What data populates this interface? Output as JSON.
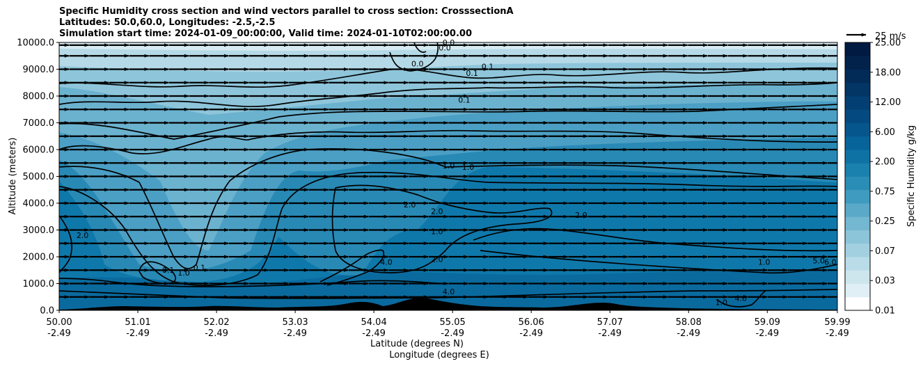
{
  "chart_data": {
    "type": "contourf",
    "title_lines": [
      "Specific Humidity cross section and wind vectors parallel to cross section: CrosssectionA",
      "Latitudes: 50.0,60.0, Longitudes: -2.5,-2.5",
      "Simulation start time: 2024-01-09_00:00:00, Valid time: 2024-01-10T02:00:00.00"
    ],
    "ylabel": "Altitude (meters)",
    "xlabel_lat": "Latitude (degrees N)",
    "xlabel_lon": "Longitude (degrees E)",
    "xlim": [
      50.0,
      59.99
    ],
    "ylim": [
      0,
      10000
    ],
    "grid": "horizontal",
    "x_ticks": [
      {
        "lat": "50.00",
        "lon": "-2.49",
        "v": 50.0
      },
      {
        "lat": "51.01",
        "lon": "-2.49",
        "v": 51.01
      },
      {
        "lat": "52.02",
        "lon": "-2.49",
        "v": 52.02
      },
      {
        "lat": "53.03",
        "lon": "-2.49",
        "v": 53.03
      },
      {
        "lat": "54.04",
        "lon": "-2.49",
        "v": 54.04
      },
      {
        "lat": "55.05",
        "lon": "-2.49",
        "v": 55.05
      },
      {
        "lat": "56.06",
        "lon": "-2.49",
        "v": 56.06
      },
      {
        "lat": "57.07",
        "lon": "-2.49",
        "v": 57.07
      },
      {
        "lat": "58.08",
        "lon": "-2.49",
        "v": 58.08
      },
      {
        "lat": "59.09",
        "lon": "-2.49",
        "v": 59.09
      },
      {
        "lat": "59.99",
        "lon": "-2.49",
        "v": 59.99
      }
    ],
    "y_ticks": [
      "0.0",
      "1000.0",
      "2000.0",
      "3000.0",
      "4000.0",
      "5000.0",
      "6000.0",
      "7000.0",
      "8000.0",
      "9000.0",
      "10000.0"
    ],
    "y_tick_values": [
      0,
      1000,
      2000,
      3000,
      4000,
      5000,
      6000,
      7000,
      8000,
      9000,
      10000
    ],
    "colorbar": {
      "label": "Specific Humidity g/kg",
      "tick_labels": [
        "0.01",
        "0.03",
        "0.07",
        "0.25",
        "0.75",
        "2.00",
        "6.00",
        "12.00",
        "18.00",
        "25.00"
      ],
      "colors": [
        "#ffffff",
        "#dfeff5",
        "#cde6ee",
        "#b9dce8",
        "#a3d0e0",
        "#8cc4d9",
        "#74b7d1",
        "#5aa9c8",
        "#3f9bbf",
        "#2a8db6",
        "#1a80ad",
        "#0e72a4",
        "#07649a",
        "#05568d",
        "#044a80",
        "#043f73",
        "#033565",
        "#022b58",
        "#02224c",
        "#011a42"
      ]
    },
    "quiver_key": {
      "label": "25 m/s",
      "value": 25
    },
    "wind_vectors": {
      "u": 25,
      "w": 0,
      "x_start": 50.0,
      "x_end": 59.99,
      "x_count": 40,
      "y_levels": [
        500,
        1000,
        1500,
        2000,
        2500,
        3000,
        3500,
        4000,
        4500,
        5000,
        5500,
        6000,
        6500,
        7000,
        7500,
        8000,
        8500,
        9000,
        9500,
        9900
      ]
    },
    "contour_labels": [
      {
        "text": "0.0",
        "x": 55.0,
        "y": 9900
      },
      {
        "text": "0.0",
        "x": 54.6,
        "y": 9100
      },
      {
        "text": "0.0",
        "x": 54.95,
        "y": 9700
      },
      {
        "text": "0.1",
        "x": 55.3,
        "y": 8750
      },
      {
        "text": "0.1",
        "x": 55.5,
        "y": 9000
      },
      {
        "text": "0.1",
        "x": 55.2,
        "y": 7750
      },
      {
        "text": "1.0",
        "x": 55.0,
        "y": 5300
      },
      {
        "text": "1.0",
        "x": 55.25,
        "y": 5250
      },
      {
        "text": "2.0",
        "x": 54.5,
        "y": 3850
      },
      {
        "text": "2.0",
        "x": 54.85,
        "y": 3600
      },
      {
        "text": "2.0",
        "x": 50.3,
        "y": 2700
      },
      {
        "text": "2.0",
        "x": 56.7,
        "y": 3450
      },
      {
        "text": "1.0",
        "x": 54.85,
        "y": 2850
      },
      {
        "text": "4.0",
        "x": 54.2,
        "y": 1700
      },
      {
        "text": "2.0",
        "x": 54.85,
        "y": 1800
      },
      {
        "text": "0.1",
        "x": 51.8,
        "y": 1500
      },
      {
        "text": "1.0",
        "x": 51.6,
        "y": 1300
      },
      {
        "text": "0.1",
        "x": 51.4,
        "y": 1400
      },
      {
        "text": "4.0",
        "x": 55.0,
        "y": 600
      },
      {
        "text": "1.0",
        "x": 59.05,
        "y": 1700
      },
      {
        "text": "5.0",
        "x": 59.75,
        "y": 1750
      },
      {
        "text": "6.0",
        "x": 59.9,
        "y": 1700
      },
      {
        "text": "1.0",
        "x": 58.5,
        "y": 200
      },
      {
        "text": "4.0",
        "x": 58.75,
        "y": 350
      }
    ]
  }
}
